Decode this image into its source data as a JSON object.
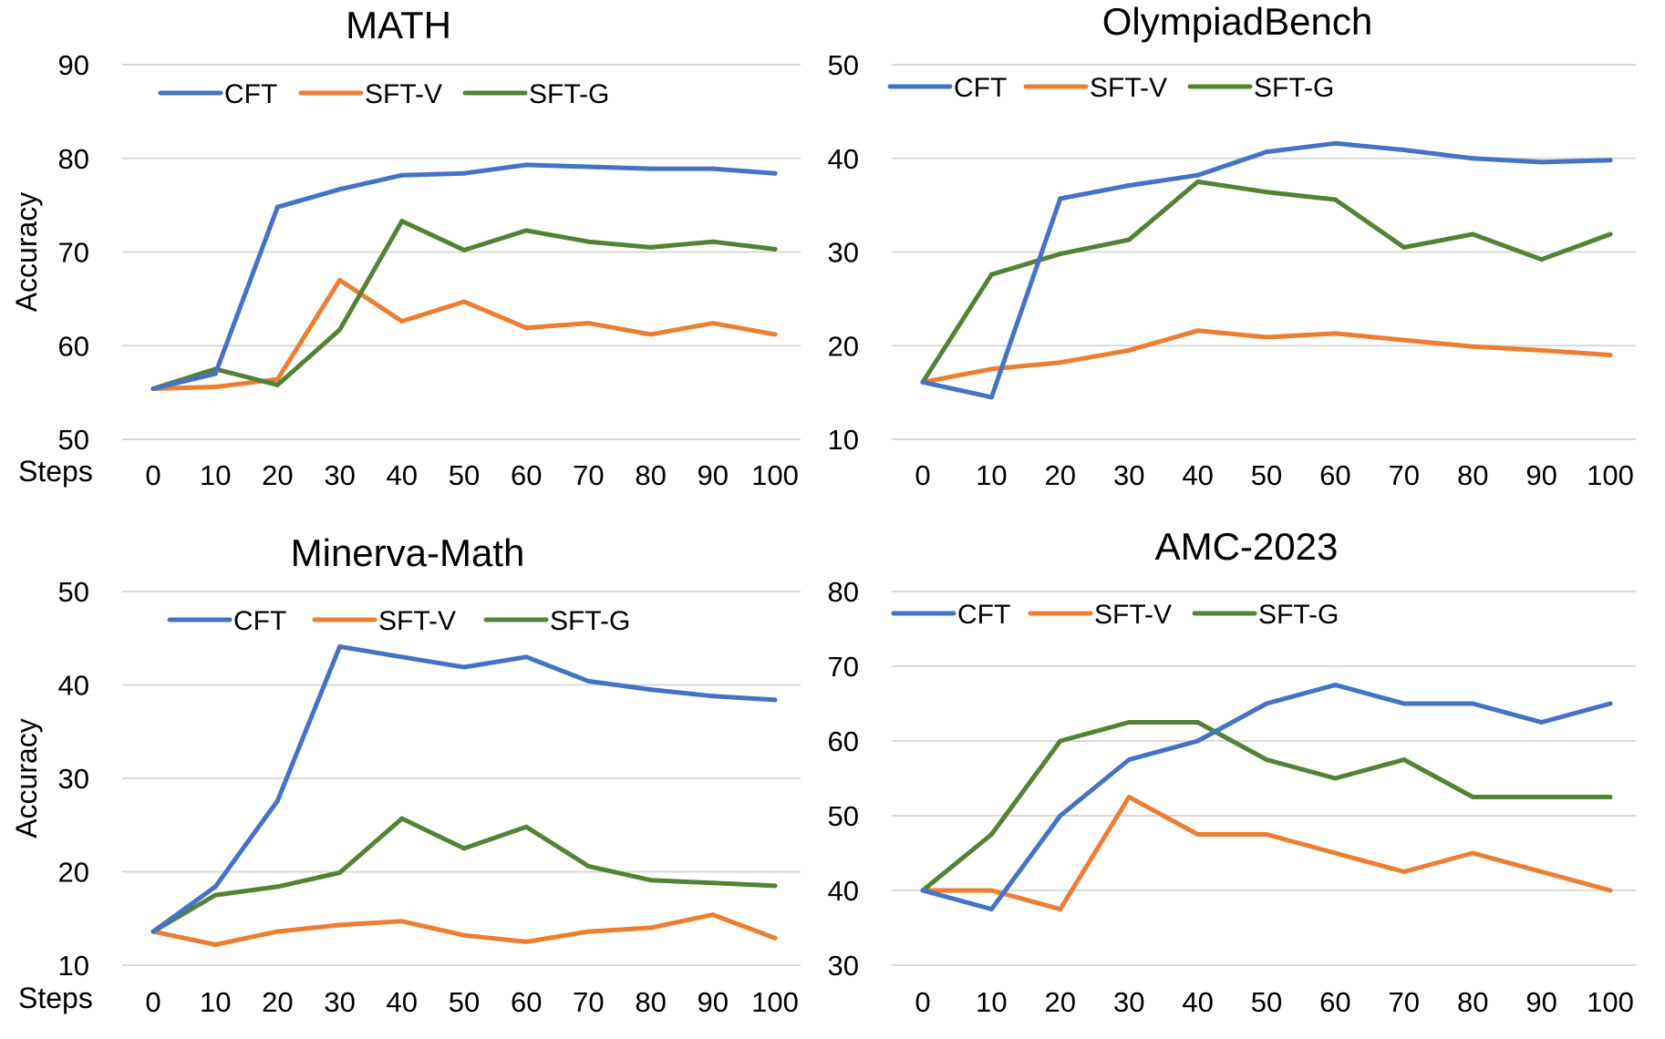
{
  "colors": {
    "CFT": "#4472c4",
    "SFT-V": "#ed7d31",
    "SFT-G": "#548235"
  },
  "chart_data": [
    {
      "type": "line",
      "title": "MATH",
      "ylabel": "Accuracy",
      "xlabel": "Steps",
      "x": [
        "0",
        "10",
        "20",
        "30",
        "40",
        "50",
        "60",
        "70",
        "80",
        "90",
        "100"
      ],
      "ylim": [
        50,
        90
      ],
      "yticks": [
        "50",
        "60",
        "70",
        "80",
        "90"
      ],
      "grid": true,
      "legend": "top",
      "series": [
        {
          "name": "CFT",
          "values": [
            55.4,
            57.0,
            74.8,
            76.7,
            78.2,
            78.4,
            79.3,
            79.1,
            78.9,
            78.9,
            78.4
          ]
        },
        {
          "name": "SFT-V",
          "values": [
            55.4,
            55.6,
            56.4,
            67.0,
            62.6,
            64.7,
            61.9,
            62.4,
            61.2,
            62.4,
            61.2
          ]
        },
        {
          "name": "SFT-G",
          "values": [
            55.4,
            57.5,
            55.8,
            61.7,
            73.3,
            70.2,
            72.3,
            71.1,
            70.5,
            71.1,
            70.3
          ]
        }
      ]
    },
    {
      "type": "line",
      "title": "OlympiadBench",
      "ylabel": "",
      "xlabel": "",
      "x": [
        "0",
        "10",
        "20",
        "30",
        "40",
        "50",
        "60",
        "70",
        "80",
        "90",
        "100"
      ],
      "ylim": [
        10,
        50
      ],
      "yticks": [
        "10",
        "20",
        "30",
        "40",
        "50"
      ],
      "grid": true,
      "legend": "top",
      "series": [
        {
          "name": "CFT",
          "values": [
            16.1,
            14.5,
            35.7,
            37.1,
            38.2,
            40.7,
            41.6,
            40.9,
            40.0,
            39.6,
            39.8
          ]
        },
        {
          "name": "SFT-V",
          "values": [
            16.1,
            17.5,
            18.2,
            19.5,
            21.6,
            20.9,
            21.3,
            20.6,
            19.9,
            19.5,
            19.0
          ]
        },
        {
          "name": "SFT-G",
          "values": [
            16.1,
            27.6,
            29.8,
            31.3,
            37.5,
            36.4,
            35.6,
            30.5,
            31.9,
            29.2,
            31.9
          ]
        }
      ]
    },
    {
      "type": "line",
      "title": "Minerva-Math",
      "ylabel": "Accuracy",
      "xlabel": "Steps",
      "x": [
        "0",
        "10",
        "20",
        "30",
        "40",
        "50",
        "60",
        "70",
        "80",
        "90",
        "100"
      ],
      "ylim": [
        10,
        50
      ],
      "yticks": [
        "10",
        "20",
        "30",
        "40",
        "50"
      ],
      "grid": true,
      "legend": "top",
      "series": [
        {
          "name": "CFT",
          "values": [
            13.6,
            18.4,
            27.6,
            44.1,
            43.0,
            41.9,
            43.0,
            40.4,
            39.5,
            38.8,
            38.4
          ]
        },
        {
          "name": "SFT-V",
          "values": [
            13.6,
            12.2,
            13.6,
            14.3,
            14.7,
            13.2,
            12.5,
            13.6,
            14.0,
            15.4,
            12.9
          ]
        },
        {
          "name": "SFT-G",
          "values": [
            13.6,
            17.5,
            18.4,
            19.9,
            25.7,
            22.5,
            24.8,
            20.6,
            19.1,
            18.8,
            18.5
          ]
        }
      ]
    },
    {
      "type": "line",
      "title": "AMC-2023",
      "ylabel": "",
      "xlabel": "",
      "x": [
        "0",
        "10",
        "20",
        "30",
        "40",
        "50",
        "60",
        "70",
        "80",
        "90",
        "100"
      ],
      "ylim": [
        30,
        80
      ],
      "yticks": [
        "30",
        "40",
        "50",
        "60",
        "70",
        "80"
      ],
      "grid": true,
      "legend": "top",
      "series": [
        {
          "name": "CFT",
          "values": [
            40.0,
            37.5,
            50.0,
            57.5,
            60.0,
            65.0,
            67.5,
            65.0,
            65.0,
            62.5,
            65.0
          ]
        },
        {
          "name": "SFT-V",
          "values": [
            40.0,
            40.0,
            37.5,
            52.5,
            47.5,
            47.5,
            45.0,
            42.5,
            45.0,
            42.5,
            40.0
          ]
        },
        {
          "name": "SFT-G",
          "values": [
            40.0,
            47.5,
            60.0,
            62.5,
            62.5,
            57.5,
            55.0,
            57.5,
            52.5,
            52.5,
            52.5
          ]
        }
      ]
    }
  ]
}
